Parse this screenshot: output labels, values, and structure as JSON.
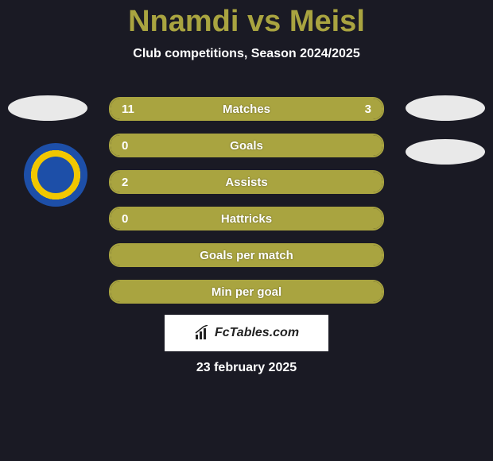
{
  "header": {
    "title": "Nnamdi vs Meisl",
    "subtitle": "Club competitions, Season 2024/2025"
  },
  "colors": {
    "background": "#1a1a24",
    "accent": "#a9a440",
    "title": "#a9a440",
    "text_light": "#ffffff",
    "badge_bg": "#e9e9e9",
    "logo_outer": "#1d4fa8",
    "logo_inner": "#f2c700"
  },
  "stats": [
    {
      "label": "Matches",
      "left_value": "11",
      "right_value": "3",
      "left_fill_pct": 78.6,
      "right_fill_pct": 21.4,
      "show_right": true,
      "full_bar": false
    },
    {
      "label": "Goals",
      "left_value": "0",
      "right_value": "",
      "left_fill_pct": 100,
      "right_fill_pct": 0,
      "show_right": false,
      "full_bar": true
    },
    {
      "label": "Assists",
      "left_value": "2",
      "right_value": "",
      "left_fill_pct": 100,
      "right_fill_pct": 0,
      "show_right": false,
      "full_bar": true
    },
    {
      "label": "Hattricks",
      "left_value": "0",
      "right_value": "",
      "left_fill_pct": 100,
      "right_fill_pct": 0,
      "show_right": false,
      "full_bar": true
    },
    {
      "label": "Goals per match",
      "left_value": "",
      "right_value": "",
      "left_fill_pct": 100,
      "right_fill_pct": 0,
      "show_right": false,
      "full_bar": true
    },
    {
      "label": "Min per goal",
      "left_value": "",
      "right_value": "",
      "left_fill_pct": 100,
      "right_fill_pct": 0,
      "show_right": false,
      "full_bar": true
    }
  ],
  "footer": {
    "brand": "FcTables.com",
    "date": "23 february 2025"
  }
}
